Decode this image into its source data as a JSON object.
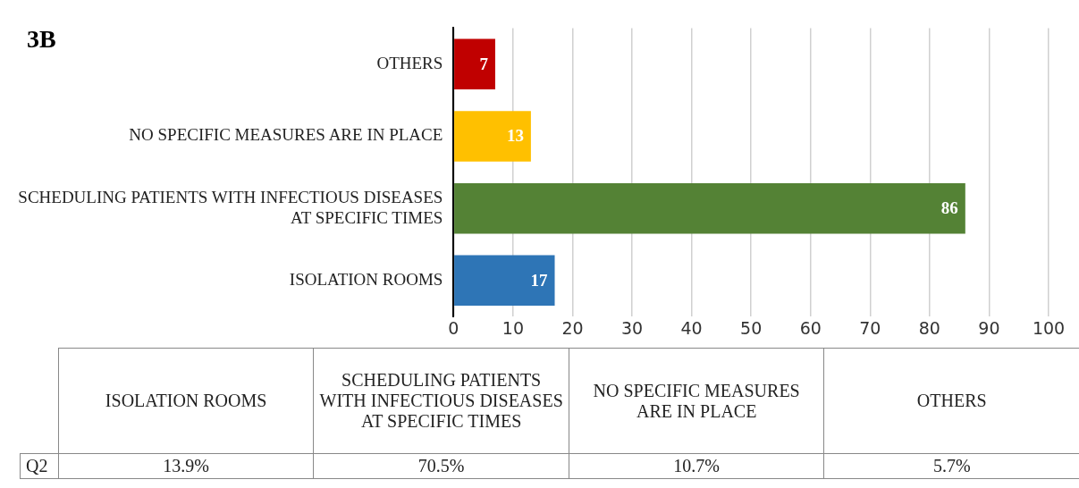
{
  "chart_data": {
    "type": "bar",
    "orientation": "horizontal",
    "title": "3B",
    "categories": [
      "OTHERS",
      "NO SPECIFIC MEASURES ARE IN PLACE",
      "SCHEDULING PATIENTS WITH INFECTIOUS DISEASES AT SPECIFIC TIMES",
      "ISOLATION ROOMS"
    ],
    "values": [
      7,
      13,
      86,
      17
    ],
    "colors": [
      "#c00000",
      "#ffc000",
      "#548235",
      "#2e75b6"
    ],
    "xlim": [
      0,
      100
    ],
    "xticks": [
      0,
      10,
      20,
      30,
      40,
      50,
      60,
      70,
      80,
      90,
      100
    ],
    "grid": "x",
    "legend": false,
    "data_labels": true,
    "annotations": [
      "Q2",
      "13.9%",
      "70.5%",
      "10.7%",
      "5.7%"
    ]
  }
}
